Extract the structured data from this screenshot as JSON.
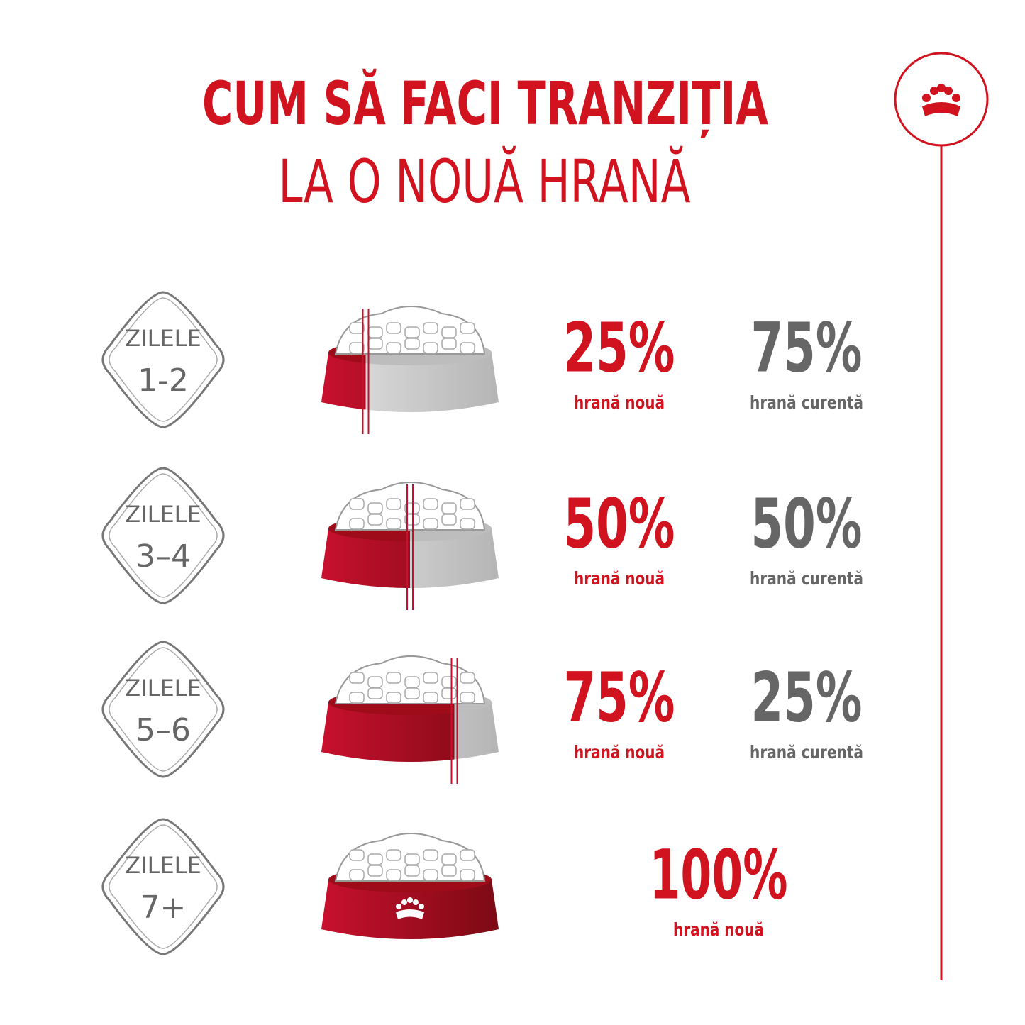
{
  "header": {
    "title": "CUM SĂ FACI TRANZIȚIA",
    "subtitle": "LA O NOUĂ HRANĂ"
  },
  "rows": [
    {
      "day_label": "ZILELE",
      "days": "1-2",
      "new_percent": "25%",
      "new_label": "hrană nouă",
      "current_percent": "75%",
      "current_label": "hrană curentă"
    },
    {
      "day_label": "ZILELE",
      "days": "3–4",
      "new_percent": "50%",
      "new_label": "hrană nouă",
      "current_percent": "50%",
      "current_label": "hrană curentă"
    },
    {
      "day_label": "ZILELE",
      "days": "5–6",
      "new_percent": "75%",
      "new_label": "hrană nouă",
      "current_percent": "25%",
      "current_label": "hrană curentă"
    },
    {
      "day_label": "ZILELE",
      "days": "7+",
      "new_percent": "100%",
      "new_label": "hrană nouă"
    }
  ]
}
